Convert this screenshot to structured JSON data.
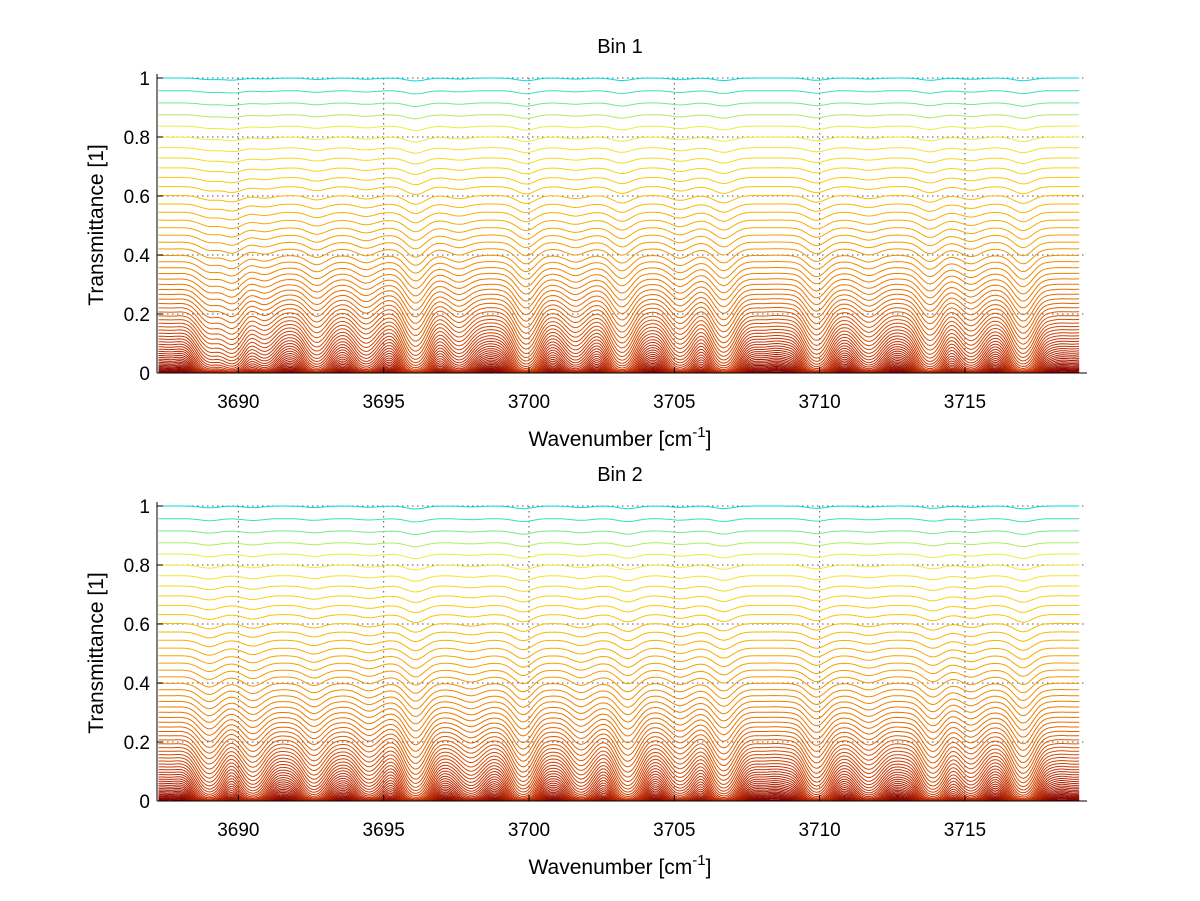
{
  "chart_data": [
    {
      "type": "line",
      "title": "Bin 1",
      "xlabel": "Wavenumber [cm",
      "xlabel_sup": "-1",
      "xlabel_end": "]",
      "ylabel": "Transmittance [1]",
      "xlim": [
        3687.2,
        3719.2
      ],
      "ylim": [
        0,
        1
      ],
      "xticks": [
        3690,
        3695,
        3700,
        3705,
        3710,
        3715
      ],
      "xtick_labels": [
        "3690",
        "3695",
        "3700",
        "3705",
        "3710",
        "3715"
      ],
      "yticks": [
        0,
        0.2,
        0.4,
        0.6,
        0.8,
        1
      ],
      "ytick_labels": [
        "0",
        "0.2",
        "0.4",
        "0.6",
        "0.8",
        "1"
      ],
      "grid": true,
      "absorption_lines": [
        {
          "x": 3689.0,
          "depth": 0.5
        },
        {
          "x": 3689.8,
          "depth": 0.7
        },
        {
          "x": 3690.9,
          "depth": 0.3
        },
        {
          "x": 3692.7,
          "depth": 0.5
        },
        {
          "x": 3694.4,
          "depth": 0.4
        },
        {
          "x": 3696.1,
          "depth": 1.0
        },
        {
          "x": 3697.6,
          "depth": 0.35
        },
        {
          "x": 3699.9,
          "depth": 0.9
        },
        {
          "x": 3701.6,
          "depth": 0.35
        },
        {
          "x": 3703.2,
          "depth": 0.85
        },
        {
          "x": 3705.2,
          "depth": 0.55
        },
        {
          "x": 3706.7,
          "depth": 0.85
        },
        {
          "x": 3709.9,
          "depth": 0.75
        },
        {
          "x": 3711.7,
          "depth": 0.35
        },
        {
          "x": 3713.8,
          "depth": 0.75
        },
        {
          "x": 3715.2,
          "depth": 0.45
        },
        {
          "x": 3717.0,
          "depth": 0.9
        }
      ],
      "curve_count": 60
    },
    {
      "type": "line",
      "title": "Bin 2",
      "xlabel": "Wavenumber [cm",
      "xlabel_sup": "-1",
      "xlabel_end": "]",
      "ylabel": "Transmittance [1]",
      "xlim": [
        3687.2,
        3719.2
      ],
      "ylim": [
        0,
        1
      ],
      "xticks": [
        3690,
        3695,
        3700,
        3705,
        3710,
        3715
      ],
      "xtick_labels": [
        "3690",
        "3695",
        "3700",
        "3705",
        "3710",
        "3715"
      ],
      "yticks": [
        0,
        0.2,
        0.4,
        0.6,
        0.8,
        1
      ],
      "ytick_labels": [
        "0",
        "0.2",
        "0.4",
        "0.6",
        "0.8",
        "1"
      ],
      "grid": true,
      "absorption_lines": [
        {
          "x": 3689.0,
          "depth": 0.6
        },
        {
          "x": 3690.5,
          "depth": 0.55
        },
        {
          "x": 3692.6,
          "depth": 0.5
        },
        {
          "x": 3694.5,
          "depth": 0.4
        },
        {
          "x": 3696.1,
          "depth": 1.0
        },
        {
          "x": 3698.0,
          "depth": 0.3
        },
        {
          "x": 3699.8,
          "depth": 0.9
        },
        {
          "x": 3701.8,
          "depth": 0.5
        },
        {
          "x": 3703.4,
          "depth": 0.9
        },
        {
          "x": 3705.2,
          "depth": 0.45
        },
        {
          "x": 3706.7,
          "depth": 0.85
        },
        {
          "x": 3709.9,
          "depth": 0.75
        },
        {
          "x": 3711.7,
          "depth": 0.35
        },
        {
          "x": 3713.9,
          "depth": 0.75
        },
        {
          "x": 3715.2,
          "depth": 0.45
        },
        {
          "x": 3717.0,
          "depth": 0.95
        }
      ],
      "curve_count": 60
    }
  ]
}
